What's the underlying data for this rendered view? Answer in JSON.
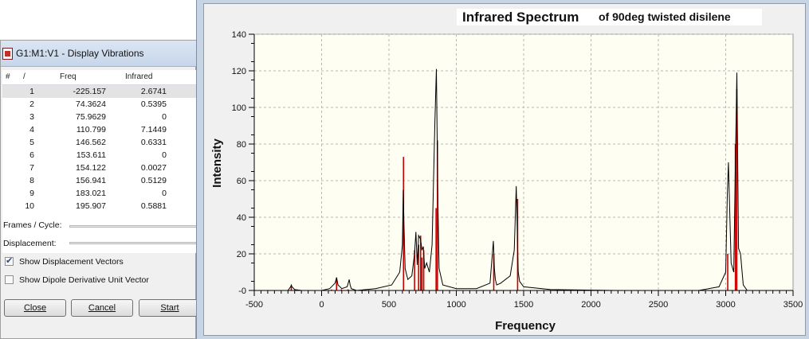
{
  "vibrations_window": {
    "title": "G1:M1:V1 - Display Vibrations",
    "columns": [
      "#",
      "/",
      "Freq",
      "Infrared"
    ],
    "rows": [
      {
        "num": "1",
        "freq": "-225.157",
        "ir": "2.6741"
      },
      {
        "num": "2",
        "freq": "74.3624",
        "ir": "0.5395"
      },
      {
        "num": "3",
        "freq": "75.9629",
        "ir": "0"
      },
      {
        "num": "4",
        "freq": "110.799",
        "ir": "7.1449"
      },
      {
        "num": "5",
        "freq": "146.562",
        "ir": "0.6331"
      },
      {
        "num": "6",
        "freq": "153.611",
        "ir": "0"
      },
      {
        "num": "7",
        "freq": "154.122",
        "ir": "0.0027"
      },
      {
        "num": "8",
        "freq": "156.941",
        "ir": "0.5129"
      },
      {
        "num": "9",
        "freq": "183.021",
        "ir": "0"
      },
      {
        "num": "10",
        "freq": "195.907",
        "ir": "0.5881"
      }
    ],
    "frames_label": "Frames / Cycle:",
    "displacement_label": "Displacement:",
    "show_displacement_label": "Show Displacement Vectors",
    "show_displacement_checked": true,
    "show_dipole_label": "Show Dipole Derivative Unit Vector",
    "show_dipole_checked": false,
    "buttons": {
      "close": "Close",
      "cancel": "Cancel",
      "start": "Start"
    }
  },
  "chart_data": {
    "type": "line",
    "title": "Infrared Spectrum",
    "title_suffix": "of 90deg twisted disilene",
    "xlabel": "Frequency",
    "ylabel": "Intensity",
    "xlim": [
      -500,
      3500
    ],
    "ylim": [
      0,
      140
    ],
    "x_ticks": [
      -500,
      0,
      500,
      1000,
      1500,
      2000,
      2500,
      3000,
      3500
    ],
    "x_tick_labels": [
      "-500",
      "0",
      "500",
      "1000",
      "1500",
      "2000",
      "2500",
      "3000",
      "3500"
    ],
    "y_ticks": [
      0,
      20,
      40,
      60,
      80,
      100,
      120,
      140
    ],
    "y_tick_labels": [
      "-0",
      "20",
      "40",
      "60",
      "80",
      "100",
      "120",
      "140"
    ],
    "grid": true,
    "plot_background": "#fefef2",
    "curve_color": "#000000",
    "stick_color": "#cc0000",
    "series": [
      {
        "kind": "broadened-spectrum",
        "x": [
          -500,
          -250,
          -230,
          -225,
          -220,
          -200,
          -150,
          0,
          60,
          100,
          111,
          122,
          150,
          190,
          205,
          212,
          220,
          260,
          400,
          520,
          580,
          600,
          606,
          612,
          620,
          640,
          670,
          690,
          700,
          710,
          720,
          735,
          745,
          755,
          765,
          780,
          800,
          820,
          840,
          852,
          862,
          872,
          900,
          1000,
          1150,
          1250,
          1275,
          1283,
          1290,
          1300,
          1330,
          1400,
          1430,
          1445,
          1453,
          1460,
          1470,
          1500,
          1700,
          2200,
          2800,
          2950,
          3000,
          3012,
          3020,
          3040,
          3060,
          3070,
          3083,
          3095,
          3110,
          3130,
          3160
        ],
        "y": [
          0,
          0,
          2,
          3,
          2,
          0.5,
          0,
          0,
          1,
          4,
          7,
          3,
          1,
          2,
          6,
          3,
          1,
          0,
          1,
          3,
          10,
          25,
          55,
          35,
          12,
          6,
          8,
          20,
          32,
          14,
          30,
          28,
          22,
          24,
          12,
          15,
          10,
          25,
          90,
          121,
          55,
          12,
          3,
          1,
          1,
          4,
          27,
          12,
          6,
          3,
          4,
          8,
          22,
          57,
          30,
          10,
          5,
          2,
          0.5,
          0,
          0,
          2,
          10,
          52,
          70,
          15,
          10,
          60,
          119,
          23,
          20,
          3,
          0
        ]
      },
      {
        "kind": "sticks",
        "x": [
          -225,
          74,
          111,
          147,
          196,
          608,
          690,
          720,
          735,
          745,
          758,
          850,
          860,
          1278,
          1455,
          3015,
          3072,
          3082
        ],
        "y": [
          2.7,
          0.5,
          7.1,
          0.6,
          0.6,
          73,
          22,
          25,
          30,
          18,
          22,
          45,
          82,
          20,
          50,
          20,
          80,
          110
        ]
      }
    ]
  }
}
